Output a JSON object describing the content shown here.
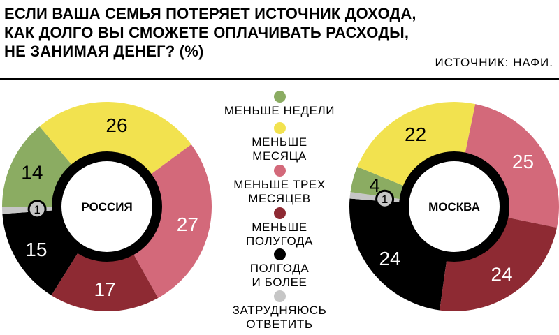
{
  "header": {
    "title_lines": [
      "ЕСЛИ ВАША СЕМЬЯ ПОТЕРЯЕТ ИСТОЧНИК ДОХОДА,",
      "КАК ДОЛГО ВЫ СМОЖЕТЕ ОПЛАЧИВАТЬ РАСХОДЫ,",
      "НЕ ЗАНИМАЯ ДЕНЕГ? (%)"
    ],
    "source": "ИСТОЧНИК: НАФИ."
  },
  "chart_data": [
    {
      "type": "pie",
      "title": "РОССИЯ",
      "categories": [
        "МЕНЬШЕ НЕДЕЛИ",
        "МЕНЬШЕ МЕСЯЦА",
        "МЕНЬШЕ ТРЕХ МЕСЯЦЕВ",
        "МЕНЬШЕ ПОЛУГОДА",
        "ПОЛГОДА И БОЛЕЕ",
        "ЗАТРУДНЯЮСЬ ОТВЕТИТЬ"
      ],
      "values": [
        14,
        26,
        27,
        17,
        15,
        1
      ],
      "labels": [
        "14",
        "26",
        "27",
        "17",
        "15",
        "1"
      ]
    },
    {
      "type": "pie",
      "title": "МОСКВА",
      "categories": [
        "МЕНЬШЕ НЕДЕЛИ",
        "МЕНЬШЕ МЕСЯЦА",
        "МЕНЬШЕ ТРЕХ МЕСЯЦЕВ",
        "МЕНЬШЕ ПОЛУГОДА",
        "ПОЛГОДА И БОЛЕЕ",
        "ЗАТРУДНЯЮСЬ ОТВЕТИТЬ"
      ],
      "values": [
        4,
        22,
        25,
        24,
        24,
        1
      ],
      "labels": [
        "4",
        "22",
        "25",
        "24",
        "24",
        "1"
      ]
    }
  ],
  "legend": {
    "items": [
      {
        "lines": [
          "МЕНЬШЕ НЕДЕЛИ"
        ],
        "color": "#8bac62"
      },
      {
        "lines": [
          "МЕНЬШЕ",
          "МЕСЯЦА"
        ],
        "color": "#f2e24f"
      },
      {
        "lines": [
          "МЕНЬШЕ ТРЕХ",
          "МЕСЯЦЕВ"
        ],
        "color": "#d3697a"
      },
      {
        "lines": [
          "МЕНЬШЕ",
          "ПОЛУГОДА"
        ],
        "color": "#8e2a33"
      },
      {
        "lines": [
          "ПОЛГОДА",
          "И БОЛЕЕ"
        ],
        "color": "#000000"
      },
      {
        "lines": [
          "ЗАТРУДНЯЮСЬ ОТВЕТИТЬ"
        ],
        "color": "#c6c6c6"
      }
    ]
  },
  "colors": {
    "categories": [
      "#8bac62",
      "#f2e24f",
      "#d3697a",
      "#8e2a33",
      "#000000",
      "#c6c6c6"
    ],
    "label_text": [
      "#000000",
      "#000000",
      "#ffffff",
      "#ffffff",
      "#ffffff",
      "#000000"
    ]
  }
}
